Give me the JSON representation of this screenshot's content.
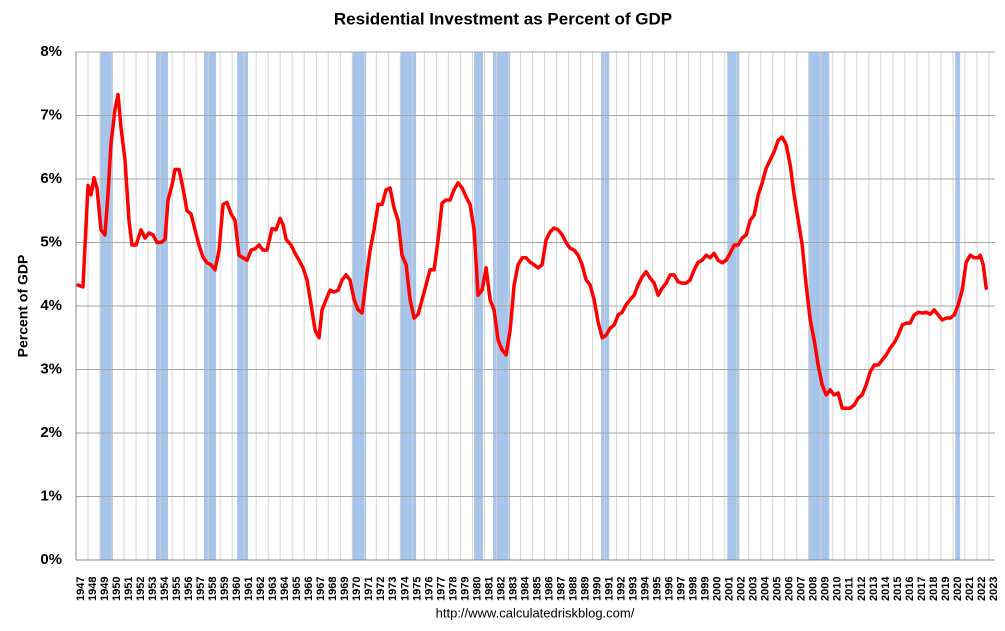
{
  "chart_data": {
    "type": "line",
    "title": "Residential Investment as Percent of GDP",
    "y_label": "Percent of GDP",
    "source": "http://www.calculatedriskblog.com/",
    "color": "#ff0000",
    "recession_color": "#a7c4ea",
    "grid": true,
    "xlim": [
      1947,
      2023.5
    ],
    "ylim": [
      0,
      8
    ],
    "yticks": [
      {
        "value": 0,
        "label": "0%"
      },
      {
        "value": 1,
        "label": "1%"
      },
      {
        "value": 2,
        "label": "2%"
      },
      {
        "value": 3,
        "label": "3%"
      },
      {
        "value": 4,
        "label": "4%"
      },
      {
        "value": 5,
        "label": "5%"
      },
      {
        "value": 6,
        "label": "6%"
      },
      {
        "value": 7,
        "label": "7%"
      },
      {
        "value": 8,
        "label": "8%"
      }
    ],
    "xticks": [
      1947,
      1948,
      1949,
      1950,
      1951,
      1952,
      1953,
      1954,
      1955,
      1956,
      1957,
      1958,
      1959,
      1960,
      1961,
      1962,
      1963,
      1964,
      1965,
      1966,
      1967,
      1968,
      1969,
      1970,
      1971,
      1972,
      1973,
      1974,
      1975,
      1976,
      1977,
      1978,
      1979,
      1980,
      1981,
      1982,
      1983,
      1984,
      1985,
      1986,
      1987,
      1988,
      1989,
      1990,
      1991,
      1992,
      1993,
      1994,
      1995,
      1996,
      1997,
      1998,
      1999,
      2000,
      2001,
      2002,
      2003,
      2004,
      2005,
      2006,
      2007,
      2008,
      2009,
      2010,
      2011,
      2012,
      2013,
      2014,
      2015,
      2016,
      2017,
      2018,
      2019,
      2020,
      2021,
      2022,
      2023
    ],
    "recessions": [
      [
        1949.0,
        1950.08
      ],
      [
        1953.66,
        1954.66
      ],
      [
        1957.66,
        1958.66
      ],
      [
        1960.41,
        1961.32
      ],
      [
        1969.98,
        1971.15
      ],
      [
        1973.98,
        1975.31
      ],
      [
        1980.14,
        1980.89
      ],
      [
        1981.72,
        1983.14
      ],
      [
        1990.71,
        1991.38
      ],
      [
        2001.21,
        2002.21
      ],
      [
        2007.95,
        2009.7
      ],
      [
        2020.19,
        2020.6
      ]
    ],
    "x": [
      1947.17,
      1947.58,
      1948.0,
      1948.25,
      1948.5,
      1948.75,
      1949.08,
      1949.41,
      1949.66,
      1949.91,
      1950.25,
      1950.5,
      1950.75,
      1951.08,
      1951.41,
      1951.66,
      1952.0,
      1952.41,
      1952.75,
      1953.08,
      1953.41,
      1953.74,
      1954.08,
      1954.41,
      1954.66,
      1954.99,
      1955.24,
      1955.58,
      1955.91,
      1956.24,
      1956.57,
      1956.91,
      1957.24,
      1957.57,
      1957.91,
      1958.24,
      1958.57,
      1958.91,
      1959.24,
      1959.57,
      1959.91,
      1960.24,
      1960.57,
      1960.9,
      1961.24,
      1961.57,
      1961.9,
      1962.24,
      1962.57,
      1962.9,
      1963.32,
      1963.65,
      1963.99,
      1964.24,
      1964.49,
      1964.9,
      1965.23,
      1965.57,
      1965.9,
      1966.23,
      1966.57,
      1966.9,
      1967.23,
      1967.48,
      1967.82,
      1968.15,
      1968.48,
      1968.82,
      1969.15,
      1969.48,
      1969.81,
      1970.15,
      1970.48,
      1970.81,
      1971.15,
      1971.48,
      1971.81,
      1972.15,
      1972.48,
      1972.81,
      1973.14,
      1973.48,
      1973.81,
      1974.14,
      1974.48,
      1974.81,
      1975.14,
      1975.48,
      1975.81,
      1976.14,
      1976.47,
      1976.81,
      1977.14,
      1977.47,
      1977.81,
      1978.14,
      1978.47,
      1978.81,
      1979.14,
      1979.47,
      1979.8,
      1980.14,
      1980.47,
      1980.8,
      1981.14,
      1981.47,
      1981.8,
      1982.14,
      1982.47,
      1982.8,
      1983.14,
      1983.47,
      1983.8,
      1984.14,
      1984.47,
      1984.8,
      1985.13,
      1985.47,
      1985.8,
      1986.13,
      1986.47,
      1986.8,
      1987.13,
      1987.47,
      1987.8,
      1988.13,
      1988.47,
      1988.8,
      1989.13,
      1989.46,
      1989.8,
      1990.13,
      1990.46,
      1990.8,
      1991.13,
      1991.46,
      1991.8,
      1992.13,
      1992.46,
      1992.79,
      1993.13,
      1993.46,
      1993.79,
      1994.13,
      1994.46,
      1994.79,
      1995.13,
      1995.46,
      1995.79,
      1996.13,
      1996.46,
      1996.79,
      1997.12,
      1997.46,
      1997.79,
      1998.12,
      1998.46,
      1998.79,
      1999.12,
      1999.46,
      1999.79,
      2000.12,
      2000.45,
      2000.79,
      2001.12,
      2001.45,
      2001.79,
      2002.12,
      2002.45,
      2002.79,
      2003.12,
      2003.45,
      2003.79,
      2004.12,
      2004.45,
      2004.78,
      2005.12,
      2005.45,
      2005.78,
      2006.12,
      2006.45,
      2006.78,
      2007.12,
      2007.45,
      2007.78,
      2008.12,
      2008.45,
      2008.78,
      2009.11,
      2009.45,
      2009.78,
      2010.11,
      2010.45,
      2010.78,
      2011.11,
      2011.44,
      2011.78,
      2012.11,
      2012.44,
      2012.78,
      2013.11,
      2013.44,
      2013.78,
      2014.11,
      2014.44,
      2014.78,
      2015.11,
      2015.44,
      2015.78,
      2016.11,
      2016.44,
      2016.77,
      2017.11,
      2017.44,
      2017.77,
      2018.11,
      2018.44,
      2018.77,
      2019.11,
      2019.44,
      2019.77,
      2020.11,
      2020.44,
      2020.77,
      2021.1,
      2021.44,
      2021.77,
      2022.1,
      2022.27,
      2022.52,
      2022.77
    ],
    "values": [
      4.33,
      4.3,
      5.9,
      5.75,
      6.02,
      5.85,
      5.2,
      5.12,
      5.75,
      6.55,
      7.1,
      7.33,
      6.8,
      6.3,
      5.35,
      4.96,
      4.96,
      5.2,
      5.07,
      5.15,
      5.12,
      5.0,
      5.0,
      5.05,
      5.67,
      5.9,
      6.15,
      6.15,
      5.85,
      5.5,
      5.45,
      5.2,
      4.96,
      4.77,
      4.68,
      4.65,
      4.57,
      4.88,
      5.6,
      5.63,
      5.45,
      5.35,
      4.8,
      4.76,
      4.72,
      4.88,
      4.9,
      4.96,
      4.88,
      4.88,
      5.22,
      5.2,
      5.38,
      5.28,
      5.05,
      4.96,
      4.83,
      4.72,
      4.6,
      4.41,
      4.02,
      3.62,
      3.5,
      3.94,
      4.1,
      4.25,
      4.22,
      4.25,
      4.41,
      4.49,
      4.41,
      4.1,
      3.94,
      3.89,
      4.41,
      4.88,
      5.2,
      5.6,
      5.6,
      5.83,
      5.86,
      5.54,
      5.35,
      4.8,
      4.65,
      4.1,
      3.81,
      3.87,
      4.1,
      4.33,
      4.57,
      4.57,
      5.04,
      5.62,
      5.67,
      5.67,
      5.83,
      5.94,
      5.86,
      5.72,
      5.6,
      5.2,
      4.17,
      4.25,
      4.6,
      4.1,
      3.94,
      3.46,
      3.31,
      3.23,
      3.62,
      4.33,
      4.65,
      4.76,
      4.76,
      4.69,
      4.65,
      4.6,
      4.65,
      5.04,
      5.17,
      5.23,
      5.2,
      5.12,
      5.0,
      4.91,
      4.88,
      4.8,
      4.65,
      4.41,
      4.33,
      4.1,
      3.75,
      3.5,
      3.54,
      3.65,
      3.7,
      3.86,
      3.9,
      4.02,
      4.1,
      4.17,
      4.33,
      4.46,
      4.54,
      4.44,
      4.36,
      4.17,
      4.28,
      4.36,
      4.49,
      4.49,
      4.38,
      4.36,
      4.36,
      4.41,
      4.57,
      4.69,
      4.72,
      4.8,
      4.76,
      4.83,
      4.72,
      4.68,
      4.72,
      4.83,
      4.96,
      4.96,
      5.07,
      5.12,
      5.35,
      5.43,
      5.75,
      5.94,
      6.17,
      6.3,
      6.43,
      6.61,
      6.66,
      6.54,
      6.22,
      5.75,
      5.35,
      4.96,
      4.33,
      3.78,
      3.46,
      3.07,
      2.76,
      2.6,
      2.68,
      2.6,
      2.63,
      2.39,
      2.39,
      2.39,
      2.44,
      2.55,
      2.6,
      2.76,
      2.96,
      3.07,
      3.07,
      3.15,
      3.23,
      3.34,
      3.42,
      3.54,
      3.7,
      3.73,
      3.73,
      3.86,
      3.9,
      3.89,
      3.9,
      3.87,
      3.94,
      3.86,
      3.78,
      3.81,
      3.81,
      3.86,
      4.02,
      4.25,
      4.69,
      4.8,
      4.76,
      4.76,
      4.8,
      4.65,
      4.28
    ]
  }
}
